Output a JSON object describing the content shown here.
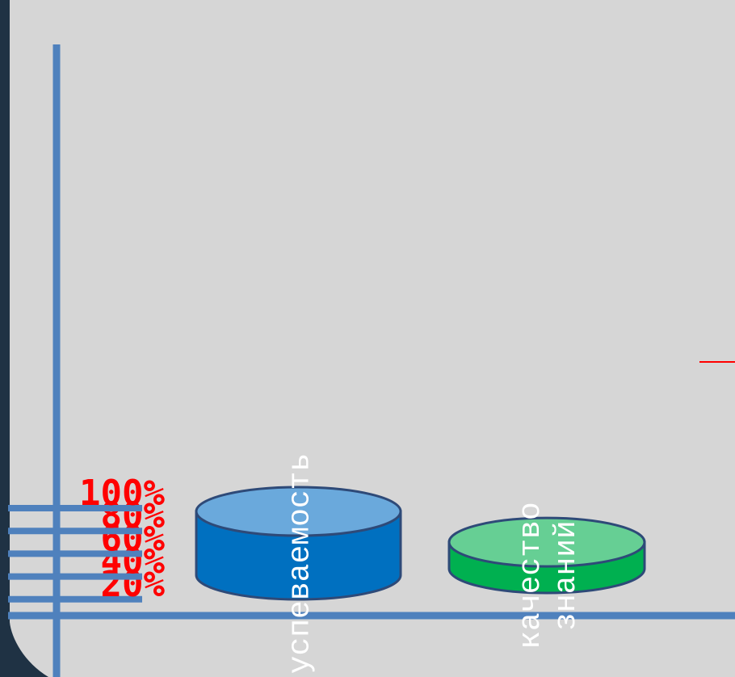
{
  "chart_data": {
    "type": "bar",
    "title": "",
    "xlabel": "",
    "ylabel": "",
    "ylim": [
      0,
      100
    ],
    "yticks": [
      20,
      40,
      60,
      80,
      100
    ],
    "ytick_labels": [
      "20%",
      "40%",
      "60%",
      "80%",
      "100%"
    ],
    "categories": [
      "успеваемость",
      "качество знаний"
    ],
    "category_lines": [
      [
        "успеваемость"
      ],
      [
        "качество",
        "знаний"
      ]
    ],
    "values": [
      95,
      68
    ],
    "colors": {
      "background": "#d6d6d6",
      "frame": "#1f3244",
      "axis": "#4f81bd",
      "tick_label": "#ff0000",
      "bar_outline": "#2e4a78",
      "bars": [
        {
          "body": "#0070c0",
          "top": "#6aa9dc"
        },
        {
          "body": "#00b050",
          "top": "#66cf94"
        }
      ]
    }
  }
}
